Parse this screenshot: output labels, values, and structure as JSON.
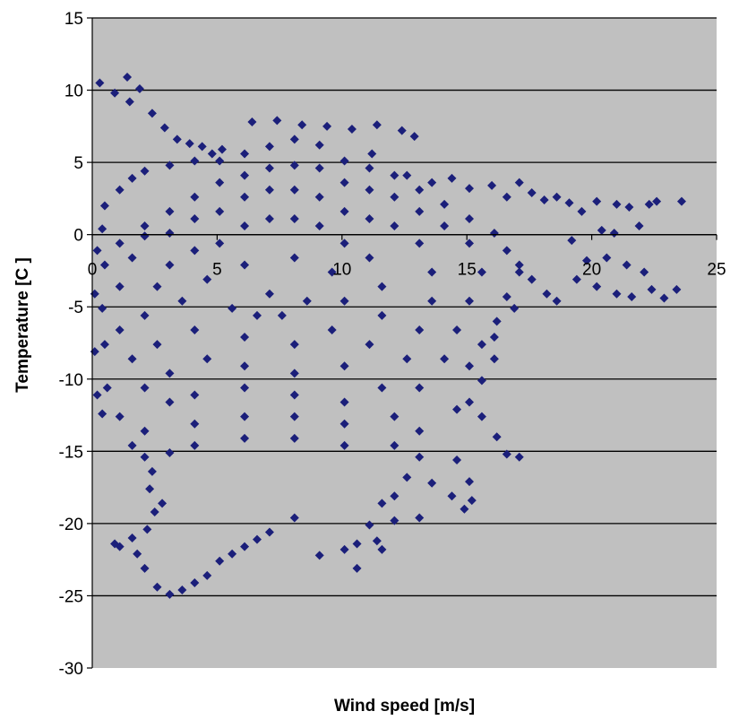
{
  "chart_data": {
    "type": "scatter",
    "title": "",
    "xlabel": "Wind speed [m/s]",
    "ylabel": "Temperature [C ]",
    "xlim": [
      0,
      25
    ],
    "ylim": [
      -30,
      15
    ],
    "x_ticks": [
      "0",
      "5",
      "10",
      "15",
      "20",
      "25"
    ],
    "y_ticks": [
      "15",
      "10",
      "5",
      "0",
      "-5",
      "-10",
      "-15",
      "-20",
      "-25",
      "-30"
    ],
    "x_axis_crosses_at_y": 0,
    "grid": "horizontal",
    "legend": "none",
    "colors": {
      "plot_background": "#c0c0c0",
      "marker": "#1b1f7a",
      "gridline": "#000000"
    },
    "marker": "diamond",
    "series": [
      {
        "values": [
          [
            0.3,
            10.5
          ],
          [
            0.9,
            9.8
          ],
          [
            1.4,
            10.9
          ],
          [
            1.9,
            10.1
          ],
          [
            1.5,
            9.2
          ],
          [
            2.4,
            8.4
          ],
          [
            2.9,
            7.4
          ],
          [
            3.4,
            6.6
          ],
          [
            3.9,
            6.3
          ],
          [
            4.4,
            6.1
          ],
          [
            4.8,
            5.6
          ],
          [
            5.2,
            5.9
          ],
          [
            6.4,
            7.8
          ],
          [
            7.4,
            7.9
          ],
          [
            8.4,
            7.6
          ],
          [
            9.4,
            7.5
          ],
          [
            10.4,
            7.3
          ],
          [
            11.4,
            7.6
          ],
          [
            12.4,
            7.2
          ],
          [
            12.9,
            6.8
          ],
          [
            11.2,
            5.6
          ],
          [
            12.6,
            4.1
          ],
          [
            13.6,
            3.6
          ],
          [
            14.4,
            3.9
          ],
          [
            15.1,
            3.2
          ],
          [
            16.0,
            3.4
          ],
          [
            16.6,
            2.6
          ],
          [
            17.1,
            3.6
          ],
          [
            17.6,
            2.9
          ],
          [
            18.1,
            2.4
          ],
          [
            18.6,
            2.6
          ],
          [
            19.1,
            2.2
          ],
          [
            19.6,
            1.6
          ],
          [
            20.2,
            2.3
          ],
          [
            21.0,
            2.1
          ],
          [
            21.5,
            1.9
          ],
          [
            22.3,
            2.1
          ],
          [
            22.6,
            2.3
          ],
          [
            23.6,
            2.3
          ],
          [
            20.4,
            0.3
          ],
          [
            20.9,
            0.1
          ],
          [
            21.9,
            0.6
          ],
          [
            19.2,
            -0.4
          ],
          [
            19.8,
            -1.8
          ],
          [
            20.6,
            -1.6
          ],
          [
            21.4,
            -2.1
          ],
          [
            22.1,
            -2.6
          ],
          [
            19.4,
            -3.1
          ],
          [
            20.2,
            -3.6
          ],
          [
            21.0,
            -4.1
          ],
          [
            21.6,
            -4.3
          ],
          [
            22.4,
            -3.8
          ],
          [
            22.9,
            -4.4
          ],
          [
            23.4,
            -3.8
          ],
          [
            17.6,
            -3.1
          ],
          [
            18.2,
            -4.1
          ],
          [
            18.6,
            -4.6
          ],
          [
            17.1,
            -2.1
          ],
          [
            16.6,
            -4.3
          ],
          [
            16.2,
            -6.0
          ],
          [
            15.6,
            -7.6
          ],
          [
            16.1,
            -8.6
          ],
          [
            15.6,
            -10.1
          ],
          [
            15.1,
            -11.6
          ],
          [
            15.6,
            -12.6
          ],
          [
            16.2,
            -14.0
          ],
          [
            16.6,
            -15.2
          ],
          [
            17.1,
            -15.4
          ],
          [
            14.6,
            -15.6
          ],
          [
            15.1,
            -17.1
          ],
          [
            14.4,
            -18.1
          ],
          [
            14.9,
            -19.0
          ],
          [
            15.2,
            -18.4
          ],
          [
            13.6,
            -17.2
          ],
          [
            13.1,
            -15.4
          ],
          [
            12.6,
            -16.8
          ],
          [
            12.1,
            -18.1
          ],
          [
            13.1,
            -19.6
          ],
          [
            11.6,
            -18.6
          ],
          [
            12.1,
            -19.8
          ],
          [
            11.1,
            -20.1
          ],
          [
            11.4,
            -21.2
          ],
          [
            10.6,
            -21.4
          ],
          [
            10.1,
            -21.8
          ],
          [
            11.6,
            -21.8
          ],
          [
            10.6,
            -23.1
          ],
          [
            9.1,
            -22.2
          ],
          [
            8.1,
            -19.6
          ],
          [
            7.1,
            -20.6
          ],
          [
            6.6,
            -21.1
          ],
          [
            6.1,
            -21.6
          ],
          [
            5.6,
            -22.1
          ],
          [
            5.1,
            -22.6
          ],
          [
            4.6,
            -23.6
          ],
          [
            4.1,
            -24.1
          ],
          [
            3.6,
            -24.6
          ],
          [
            3.1,
            -24.9
          ],
          [
            2.6,
            -24.4
          ],
          [
            2.1,
            -23.1
          ],
          [
            1.8,
            -22.1
          ],
          [
            1.1,
            -21.6
          ],
          [
            0.9,
            -21.4
          ],
          [
            1.6,
            -21.0
          ],
          [
            2.2,
            -20.4
          ],
          [
            2.5,
            -19.2
          ],
          [
            2.8,
            -18.6
          ],
          [
            2.3,
            -17.6
          ],
          [
            2.4,
            -16.4
          ],
          [
            2.1,
            -15.4
          ],
          [
            1.6,
            -14.6
          ],
          [
            0.4,
            -12.4
          ],
          [
            0.2,
            -11.1
          ],
          [
            0.1,
            -8.1
          ],
          [
            0.1,
            -4.1
          ],
          [
            0.2,
            -1.1
          ],
          [
            0.4,
            0.4
          ],
          [
            0.5,
            2.0
          ],
          [
            1.1,
            3.1
          ],
          [
            1.6,
            3.9
          ],
          [
            2.1,
            4.4
          ],
          [
            3.1,
            4.8
          ],
          [
            4.1,
            5.1
          ],
          [
            5.1,
            5.1
          ],
          [
            6.1,
            5.6
          ],
          [
            7.1,
            6.1
          ],
          [
            8.1,
            6.6
          ],
          [
            9.1,
            6.2
          ],
          [
            10.1,
            5.1
          ],
          [
            11.1,
            4.6
          ],
          [
            12.1,
            4.1
          ],
          [
            13.1,
            3.1
          ],
          [
            14.1,
            2.1
          ],
          [
            15.1,
            1.1
          ],
          [
            16.1,
            0.1
          ],
          [
            16.6,
            -1.1
          ],
          [
            17.1,
            -2.6
          ],
          [
            16.9,
            -5.1
          ],
          [
            16.1,
            -7.1
          ],
          [
            15.1,
            -9.1
          ],
          [
            14.6,
            -12.1
          ],
          [
            13.1,
            -13.6
          ],
          [
            12.1,
            -14.6
          ],
          [
            10.1,
            -14.6
          ],
          [
            8.1,
            -14.1
          ],
          [
            6.1,
            -14.1
          ],
          [
            4.1,
            -14.6
          ],
          [
            3.1,
            -15.1
          ],
          [
            2.1,
            -13.6
          ],
          [
            1.1,
            -12.6
          ],
          [
            0.6,
            -10.6
          ],
          [
            0.5,
            -7.6
          ],
          [
            0.4,
            -5.1
          ],
          [
            0.5,
            -2.1
          ],
          [
            1.1,
            -0.6
          ],
          [
            2.1,
            0.6
          ],
          [
            3.1,
            1.6
          ],
          [
            4.1,
            2.6
          ],
          [
            5.1,
            3.6
          ],
          [
            6.1,
            4.1
          ],
          [
            7.1,
            4.6
          ],
          [
            8.1,
            4.8
          ],
          [
            9.1,
            4.6
          ],
          [
            10.1,
            3.6
          ],
          [
            11.1,
            3.1
          ],
          [
            12.1,
            2.6
          ],
          [
            13.1,
            1.6
          ],
          [
            14.1,
            0.6
          ],
          [
            15.1,
            -0.6
          ],
          [
            15.6,
            -2.6
          ],
          [
            15.1,
            -4.6
          ],
          [
            14.6,
            -6.6
          ],
          [
            14.1,
            -8.6
          ],
          [
            13.1,
            -10.6
          ],
          [
            12.1,
            -12.6
          ],
          [
            10.1,
            -13.1
          ],
          [
            8.1,
            -12.6
          ],
          [
            6.1,
            -12.6
          ],
          [
            4.1,
            -13.1
          ],
          [
            3.1,
            -11.6
          ],
          [
            2.1,
            -10.6
          ],
          [
            1.6,
            -8.6
          ],
          [
            1.1,
            -6.6
          ],
          [
            1.1,
            -3.6
          ],
          [
            1.6,
            -1.6
          ],
          [
            2.1,
            -0.1
          ],
          [
            3.1,
            0.1
          ],
          [
            4.1,
            1.1
          ],
          [
            5.1,
            1.6
          ],
          [
            6.1,
            2.6
          ],
          [
            7.1,
            3.1
          ],
          [
            8.1,
            3.1
          ],
          [
            9.1,
            2.6
          ],
          [
            10.1,
            1.6
          ],
          [
            11.1,
            1.1
          ],
          [
            12.1,
            0.6
          ],
          [
            13.1,
            -0.6
          ],
          [
            13.6,
            -2.6
          ],
          [
            13.6,
            -4.6
          ],
          [
            13.1,
            -6.6
          ],
          [
            12.6,
            -8.6
          ],
          [
            11.6,
            -10.6
          ],
          [
            10.1,
            -11.6
          ],
          [
            8.1,
            -11.1
          ],
          [
            6.1,
            -10.6
          ],
          [
            4.1,
            -11.1
          ],
          [
            3.1,
            -9.6
          ],
          [
            2.6,
            -7.6
          ],
          [
            2.1,
            -5.6
          ],
          [
            2.6,
            -3.6
          ],
          [
            3.1,
            -2.1
          ],
          [
            4.1,
            -1.1
          ],
          [
            5.1,
            -0.6
          ],
          [
            6.1,
            0.6
          ],
          [
            7.1,
            1.1
          ],
          [
            8.1,
            1.1
          ],
          [
            9.1,
            0.6
          ],
          [
            10.1,
            -0.6
          ],
          [
            11.1,
            -1.6
          ],
          [
            11.6,
            -3.6
          ],
          [
            11.6,
            -5.6
          ],
          [
            11.1,
            -7.6
          ],
          [
            10.1,
            -9.1
          ],
          [
            8.1,
            -9.6
          ],
          [
            6.1,
            -9.1
          ],
          [
            4.6,
            -8.6
          ],
          [
            4.1,
            -6.6
          ],
          [
            3.6,
            -4.6
          ],
          [
            4.6,
            -3.1
          ],
          [
            6.1,
            -2.1
          ],
          [
            8.1,
            -1.6
          ],
          [
            9.6,
            -2.6
          ],
          [
            10.1,
            -4.6
          ],
          [
            9.6,
            -6.6
          ],
          [
            8.1,
            -7.6
          ],
          [
            6.1,
            -7.1
          ],
          [
            5.6,
            -5.1
          ],
          [
            7.1,
            -4.1
          ],
          [
            8.6,
            -4.6
          ],
          [
            7.6,
            -5.6
          ],
          [
            6.6,
            -5.6
          ]
        ]
      }
    ]
  }
}
